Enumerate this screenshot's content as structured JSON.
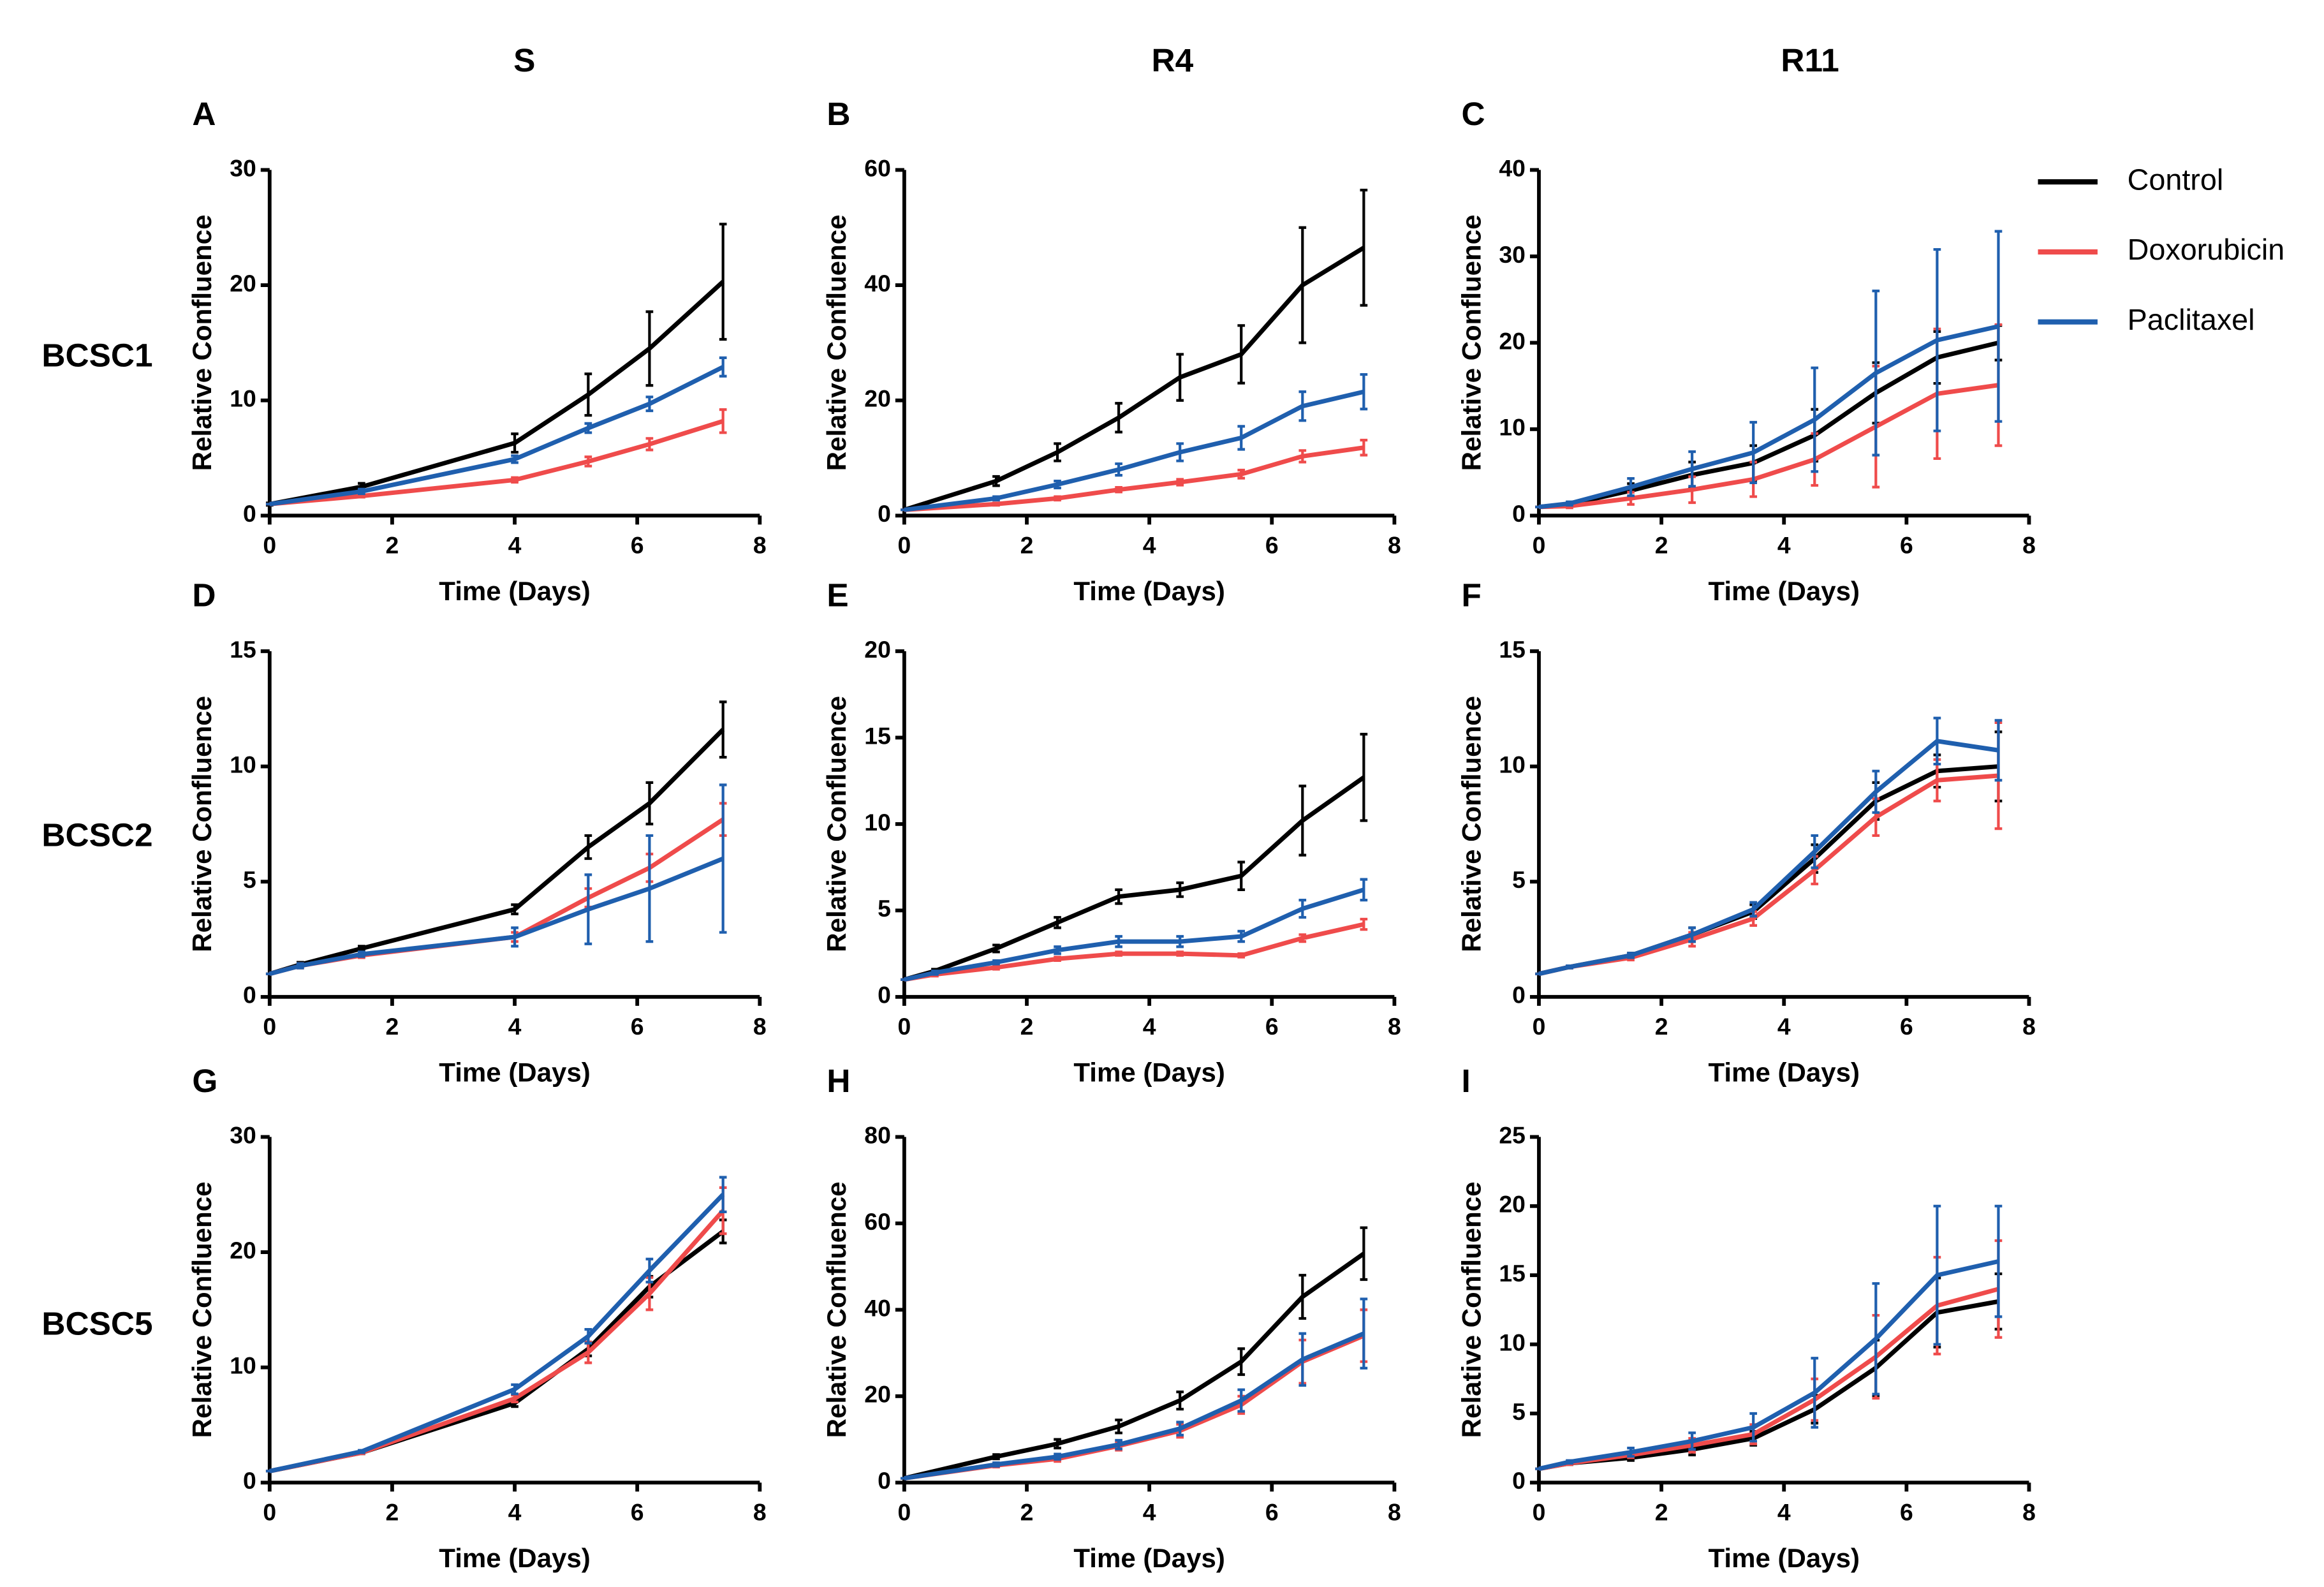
{
  "column_titles": [
    "S",
    "R4",
    "R11"
  ],
  "row_labels": [
    "BCSC1",
    "BCSC2",
    "BCSC5"
  ],
  "chart_data": [
    {
      "type": "line",
      "panel": "A",
      "xlabel": "Time (Days)",
      "ylabel": "Relative Confluence",
      "x": [
        0,
        1.5,
        4,
        5.2,
        6.2,
        7.4
      ],
      "xlim": [
        0,
        8
      ],
      "xticks": [
        0,
        2,
        4,
        6,
        8
      ],
      "ylim": [
        0,
        30
      ],
      "yticks": [
        0,
        10,
        20,
        30
      ],
      "series": [
        {
          "color": "#000000",
          "values": [
            1,
            2.5,
            6.3,
            10.5,
            14.5,
            20.3
          ],
          "errors": [
            0.1,
            0.3,
            0.8,
            1.8,
            3.2,
            5
          ]
        },
        {
          "color": "#ef4b4b",
          "values": [
            1,
            1.7,
            3.1,
            4.7,
            6.2,
            8.2
          ],
          "errors": [
            0,
            0.1,
            0.2,
            0.4,
            0.5,
            1
          ]
        },
        {
          "color": "#1f5fae",
          "values": [
            1,
            2.1,
            4.9,
            7.6,
            9.7,
            12.9
          ],
          "errors": [
            0,
            0.2,
            0.3,
            0.4,
            0.6,
            0.8
          ]
        }
      ]
    },
    {
      "type": "line",
      "panel": "B",
      "xlabel": "Time (Days)",
      "ylabel": "Relative Confluence",
      "x": [
        0,
        1.5,
        2.5,
        3.5,
        4.5,
        5.5,
        6.5,
        7.5
      ],
      "xlim": [
        0,
        8
      ],
      "xticks": [
        0,
        2,
        4,
        6,
        8
      ],
      "ylim": [
        0,
        60
      ],
      "yticks": [
        0,
        20,
        40,
        60
      ],
      "series": [
        {
          "color": "#000000",
          "values": [
            1,
            6,
            11,
            17,
            24,
            28,
            40,
            46.5
          ],
          "errors": [
            0,
            0.8,
            1.5,
            2.5,
            4,
            5,
            10,
            10
          ]
        },
        {
          "color": "#ef4b4b",
          "values": [
            1,
            2,
            3,
            4.5,
            5.8,
            7.2,
            10.3,
            11.8
          ],
          "errors": [
            0,
            0.2,
            0.3,
            0.4,
            0.5,
            0.7,
            1,
            1.3
          ]
        },
        {
          "color": "#1f5fae",
          "values": [
            1,
            3,
            5.4,
            8,
            11,
            13.5,
            19,
            21.5
          ],
          "errors": [
            0,
            0.3,
            0.6,
            1,
            1.5,
            2,
            2.5,
            3
          ]
        }
      ]
    },
    {
      "type": "line",
      "panel": "C",
      "xlabel": "Time (Days)",
      "ylabel": "Relative Confluence",
      "x": [
        0,
        0.5,
        1.5,
        2.5,
        3.5,
        4.5,
        5.5,
        6.5,
        7.5
      ],
      "xlim": [
        0,
        8
      ],
      "xticks": [
        0,
        2,
        4,
        6,
        8
      ],
      "ylim": [
        0,
        40
      ],
      "yticks": [
        0,
        10,
        20,
        30,
        40
      ],
      "series": [
        {
          "name": "Control",
          "color": "#000000",
          "values": [
            1,
            1.3,
            2.9,
            4.7,
            6.1,
            9.3,
            14.2,
            18.3,
            20
          ],
          "errors": [
            0,
            0.2,
            0.8,
            1.5,
            2,
            3,
            3.5,
            3,
            2
          ]
        },
        {
          "name": "Doxorubicin",
          "color": "#ef4b4b",
          "values": [
            1,
            1.1,
            2,
            3,
            4.2,
            6.5,
            10.3,
            14.1,
            15.1
          ],
          "errors": [
            0,
            0.2,
            0.7,
            1.5,
            2,
            3,
            7,
            7.5,
            7
          ]
        },
        {
          "name": "Paclitaxel",
          "color": "#1f5fae",
          "values": [
            1,
            1.4,
            3.3,
            5.4,
            7.3,
            11.1,
            16.5,
            20.3,
            21.9
          ],
          "errors": [
            0,
            0.2,
            1,
            2,
            3.5,
            6,
            9.5,
            10.5,
            11
          ]
        }
      ]
    },
    {
      "type": "line",
      "panel": "D",
      "xlabel": "Time (Days)",
      "ylabel": "Relative Confluence",
      "x": [
        0,
        0.5,
        1.5,
        4,
        5.2,
        6.2,
        7.4
      ],
      "xlim": [
        0,
        8
      ],
      "xticks": [
        0,
        2,
        4,
        6,
        8
      ],
      "ylim": [
        0,
        15
      ],
      "yticks": [
        0,
        5,
        10,
        15
      ],
      "series": [
        {
          "color": "#000000",
          "values": [
            1,
            1.4,
            2.1,
            3.8,
            6.5,
            8.4,
            11.6
          ],
          "errors": [
            0,
            0.1,
            0.1,
            0.2,
            0.5,
            0.9,
            1.2
          ]
        },
        {
          "color": "#ef4b4b",
          "values": [
            1,
            1.35,
            1.8,
            2.6,
            4.3,
            5.6,
            7.7
          ],
          "errors": [
            0,
            0.1,
            0.1,
            0.2,
            0.4,
            0.6,
            0.7
          ]
        },
        {
          "color": "#1f5fae",
          "values": [
            1,
            1.35,
            1.85,
            2.6,
            3.8,
            4.7,
            6
          ],
          "errors": [
            0,
            0.1,
            0.1,
            0.4,
            1.5,
            2.3,
            3.2
          ]
        }
      ]
    },
    {
      "type": "line",
      "panel": "E",
      "xlabel": "Time (Days)",
      "ylabel": "Relative Confluence",
      "x": [
        0,
        0.5,
        1.5,
        2.5,
        3.5,
        4.5,
        5.5,
        6.5,
        7.5
      ],
      "xlim": [
        0,
        8
      ],
      "xticks": [
        0,
        2,
        4,
        6,
        8
      ],
      "ylim": [
        0,
        20
      ],
      "yticks": [
        0,
        5,
        10,
        15,
        20
      ],
      "series": [
        {
          "color": "#000000",
          "values": [
            1,
            1.5,
            2.8,
            4.3,
            5.8,
            6.2,
            7,
            10.2,
            12.7
          ],
          "errors": [
            0,
            0.1,
            0.2,
            0.3,
            0.4,
            0.4,
            0.8,
            2,
            2.5
          ]
        },
        {
          "color": "#ef4b4b",
          "values": [
            1,
            1.3,
            1.7,
            2.2,
            2.5,
            2.5,
            2.4,
            3.4,
            4.2
          ],
          "errors": [
            0,
            0.1,
            0.1,
            0.1,
            0.1,
            0.1,
            0.1,
            0.2,
            0.3
          ]
        },
        {
          "color": "#1f5fae",
          "values": [
            1,
            1.4,
            2,
            2.7,
            3.2,
            3.2,
            3.5,
            5.1,
            6.2
          ],
          "errors": [
            0,
            0.1,
            0.1,
            0.2,
            0.3,
            0.3,
            0.3,
            0.5,
            0.6
          ]
        }
      ]
    },
    {
      "type": "line",
      "panel": "F",
      "xlabel": "Time (Days)",
      "ylabel": "Relative Confluence",
      "x": [
        0,
        0.5,
        1.5,
        2.5,
        3.5,
        4.5,
        5.5,
        6.5,
        7.5
      ],
      "xlim": [
        0,
        8
      ],
      "xticks": [
        0,
        2,
        4,
        6,
        8
      ],
      "ylim": [
        0,
        15
      ],
      "yticks": [
        0,
        5,
        10,
        15
      ],
      "series": [
        {
          "color": "#000000",
          "values": [
            1,
            1.3,
            1.8,
            2.7,
            3.7,
            6,
            8.5,
            9.8,
            10
          ],
          "errors": [
            0,
            0.05,
            0.1,
            0.3,
            0.3,
            0.6,
            0.8,
            0.7,
            1.5
          ]
        },
        {
          "color": "#ef4b4b",
          "values": [
            1,
            1.3,
            1.7,
            2.5,
            3.4,
            5.5,
            7.8,
            9.4,
            9.6
          ],
          "errors": [
            0,
            0.05,
            0.1,
            0.3,
            0.3,
            0.6,
            0.8,
            0.9,
            2.3
          ]
        },
        {
          "color": "#1f5fae",
          "values": [
            1,
            1.3,
            1.8,
            2.7,
            3.8,
            6.3,
            8.9,
            11.1,
            10.7
          ],
          "errors": [
            0,
            0.05,
            0.1,
            0.3,
            0.3,
            0.7,
            0.9,
            1,
            1.3
          ]
        }
      ]
    },
    {
      "type": "line",
      "panel": "G",
      "xlabel": "Time (Days)",
      "ylabel": "Relative Confluence",
      "x": [
        0,
        1.5,
        4,
        5.2,
        6.2,
        7.4
      ],
      "xlim": [
        0,
        8
      ],
      "xticks": [
        0,
        2,
        4,
        6,
        8
      ],
      "ylim": [
        0,
        30
      ],
      "yticks": [
        0,
        10,
        20,
        30
      ],
      "series": [
        {
          "color": "#000000",
          "values": [
            1,
            2.6,
            6.9,
            11.6,
            17,
            21.8
          ],
          "errors": [
            0,
            0.1,
            0.3,
            0.6,
            0.9,
            1
          ]
        },
        {
          "color": "#ef4b4b",
          "values": [
            1,
            2.6,
            7.3,
            11.3,
            16.4,
            23.6
          ],
          "errors": [
            0,
            0.1,
            0.3,
            0.9,
            1.4,
            2
          ]
        },
        {
          "color": "#1f5fae",
          "values": [
            1,
            2.7,
            8.1,
            12.7,
            18.4,
            25
          ],
          "errors": [
            0,
            0.1,
            0.4,
            0.6,
            1,
            1.5
          ]
        }
      ]
    },
    {
      "type": "line",
      "panel": "H",
      "xlabel": "Time (Days)",
      "ylabel": "Relative Confluence",
      "x": [
        0,
        1.5,
        2.5,
        3.5,
        4.5,
        5.5,
        6.5,
        7.5
      ],
      "xlim": [
        0,
        8
      ],
      "xticks": [
        0,
        2,
        4,
        6,
        8
      ],
      "ylim": [
        0,
        80
      ],
      "yticks": [
        0,
        20,
        40,
        60,
        80
      ],
      "series": [
        {
          "color": "#000000",
          "values": [
            1,
            6,
            9,
            13,
            19,
            28,
            43,
            53
          ],
          "errors": [
            0,
            0.5,
            1,
            1.5,
            2,
            3,
            5,
            6
          ]
        },
        {
          "color": "#ef4b4b",
          "values": [
            1,
            4,
            5.5,
            8.5,
            12,
            18,
            28,
            34
          ],
          "errors": [
            0,
            0.4,
            0.6,
            1,
            1.5,
            2,
            5,
            6
          ]
        },
        {
          "color": "#1f5fae",
          "values": [
            1,
            4.2,
            6,
            8.8,
            12.5,
            19,
            28.5,
            34.5
          ],
          "errors": [
            0,
            0.4,
            0.6,
            1,
            1.5,
            2.5,
            6,
            8
          ]
        }
      ]
    },
    {
      "type": "line",
      "panel": "I",
      "xlabel": "Time (Days)",
      "ylabel": "Relative Confluence",
      "x": [
        0,
        0.5,
        1.5,
        2.5,
        3.5,
        4.5,
        5.5,
        6.5,
        7.5
      ],
      "xlim": [
        0,
        8
      ],
      "xticks": [
        0,
        2,
        4,
        6,
        8
      ],
      "ylim": [
        0,
        25
      ],
      "yticks": [
        0,
        5,
        10,
        15,
        20,
        25
      ],
      "series": [
        {
          "color": "#000000",
          "values": [
            1,
            1.4,
            1.8,
            2.4,
            3.2,
            5.3,
            8.3,
            12.3,
            13.1
          ],
          "errors": [
            0,
            0.1,
            0.2,
            0.4,
            0.5,
            1,
            2,
            2.5,
            2
          ]
        },
        {
          "color": "#ef4b4b",
          "values": [
            1,
            1.4,
            2,
            2.7,
            3.5,
            6,
            9.1,
            12.8,
            14
          ],
          "errors": [
            0,
            0.1,
            0.2,
            0.5,
            0.7,
            1.5,
            3,
            3.5,
            3.5
          ]
        },
        {
          "color": "#1f5fae",
          "values": [
            1,
            1.5,
            2.2,
            3,
            4,
            6.5,
            10.4,
            15,
            16
          ],
          "errors": [
            0,
            0.1,
            0.3,
            0.6,
            1,
            2.5,
            4,
            5,
            4
          ]
        }
      ]
    }
  ]
}
